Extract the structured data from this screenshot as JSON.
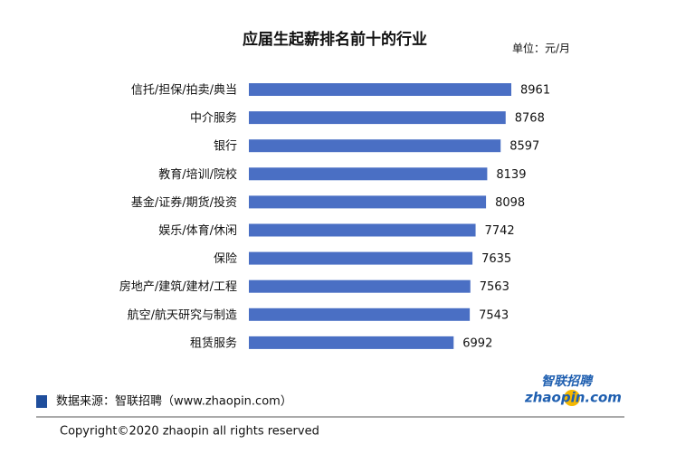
{
  "chart_data": {
    "type": "bar",
    "orientation": "horizontal",
    "title": "应届生起薪排名前十的行业",
    "unit": "单位：元/月",
    "categories": [
      "信托/担保/拍卖/典当",
      "中介服务",
      "银行",
      "教育/培训/院校",
      "基金/证券/期货/投资",
      "娱乐/体育/休闲",
      "保险",
      "房地产/建筑/建材/工程",
      "航空/航天研究与制造",
      "租赁服务"
    ],
    "values": [
      8961,
      8768,
      8597,
      8139,
      8098,
      7742,
      7635,
      7563,
      7543,
      6992
    ],
    "color": "#4a6fc4"
  },
  "footer": {
    "source": "数据来源：智联招聘（www.zhaopin.com）",
    "copyright": "Copyright©2020 zhaopin all rights reserved",
    "logo_cn": "智联招聘",
    "logo_en": "zhaopin.com"
  }
}
